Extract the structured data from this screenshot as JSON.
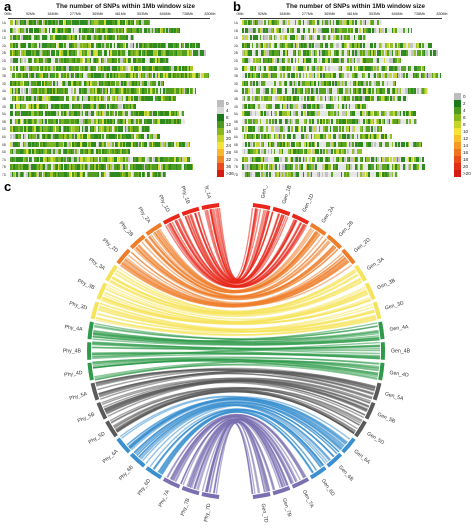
{
  "panel_a": {
    "letter": "a",
    "title": "The number of SNPs within 1Mb window size",
    "ticks": [
      "0Mb",
      "92Mb",
      "184Mb",
      "277Mb",
      "369Mb",
      "461Mb",
      "553Mb",
      "646Mb",
      "738Mb",
      "830Mb"
    ],
    "chromosomes": [
      "1A",
      "1B",
      "1D",
      "2A",
      "2B",
      "2D",
      "3A",
      "3B",
      "3D",
      "4A",
      "4B",
      "4D",
      "5A",
      "5B",
      "5D",
      "6A",
      "6B",
      "6D",
      "7A",
      "7B",
      "7D"
    ],
    "legend": [
      {
        "label": "0",
        "color": "#bdbdbd"
      },
      {
        "label": "4",
        "color": "#d9d9d9"
      },
      {
        "label": "8",
        "color": "#1a7a1a"
      },
      {
        "label": "12",
        "color": "#4e9a1e"
      },
      {
        "label": "16",
        "color": "#88b81e"
      },
      {
        "label": "20",
        "color": "#c6d32a"
      },
      {
        "label": "24",
        "color": "#f5e23a"
      },
      {
        "label": "28",
        "color": "#f8b82c"
      },
      {
        "label": "32",
        "color": "#f28a24"
      },
      {
        "label": "36",
        "color": "#ea4a1c"
      },
      {
        "label": ">36",
        "color": "#d61a14"
      }
    ]
  },
  "panel_b": {
    "letter": "b",
    "title": "The number of SNPs within 1Mb window size",
    "ticks": [
      "0Mb",
      "92Mb",
      "184Mb",
      "277Mb",
      "369Mb",
      "461Mb",
      "553Mb",
      "646Mb",
      "738Mb",
      "830Mb"
    ],
    "chromosomes": [
      "1A",
      "1B",
      "1D",
      "2A",
      "2B",
      "2D",
      "3A",
      "3B",
      "3D",
      "4A",
      "4B",
      "4D",
      "5A",
      "5B",
      "5D",
      "6A",
      "6B",
      "6D",
      "7A",
      "7B",
      "7D"
    ],
    "legend": [
      {
        "label": "0",
        "color": "#bdbdbd"
      },
      {
        "label": "2",
        "color": "#1a7a1a"
      },
      {
        "label": "4",
        "color": "#4e9a1e"
      },
      {
        "label": "6",
        "color": "#88b81e"
      },
      {
        "label": "8",
        "color": "#c6d32a"
      },
      {
        "label": "10",
        "color": "#f5e23a"
      },
      {
        "label": "12",
        "color": "#f8c02c"
      },
      {
        "label": "14",
        "color": "#f59a26"
      },
      {
        "label": "16",
        "color": "#ee7420"
      },
      {
        "label": "18",
        "color": "#e84e1c"
      },
      {
        "label": "20",
        "color": "#e02e18"
      },
      {
        "label": ">20",
        "color": "#d61a14"
      }
    ]
  },
  "panel_c": {
    "letter": "c",
    "phy_labels": [
      "Phy_1A",
      "Phy_1B",
      "Phy_1D",
      "Phy_2A",
      "Phy_2B",
      "Phy_2D",
      "Phy_3A",
      "Phy_3B",
      "Phy_3D",
      "Phy_4A",
      "Phy_4B",
      "Phy_4D",
      "Phy_5A",
      "Phy_5B",
      "Phy_5D",
      "Phy_6A",
      "Phy_6B",
      "Phy_6D",
      "Phy_7A",
      "Phy_7B",
      "Phy_7D"
    ],
    "gen_labels": [
      "Gen_1A",
      "Gen_1B",
      "Gen_1D",
      "Gen_2A",
      "Gen_2B",
      "Gen_2D",
      "Gen_3A",
      "Gen_3B",
      "Gen_3D",
      "Gen_4A",
      "Gen_4B",
      "Gen_4D",
      "Gen_5A",
      "Gen_5B",
      "Gen_5D",
      "Gen_6A",
      "Gen_6B",
      "Gen_6D",
      "Gen_7A",
      "Gen_7B",
      "Gen_7D"
    ],
    "group_colors": [
      "#e8261a",
      "#ee7d2a",
      "#f5e35a",
      "#2f9a4a",
      "#5a5a5a",
      "#3a8fd0",
      "#7a6fb0"
    ]
  }
}
